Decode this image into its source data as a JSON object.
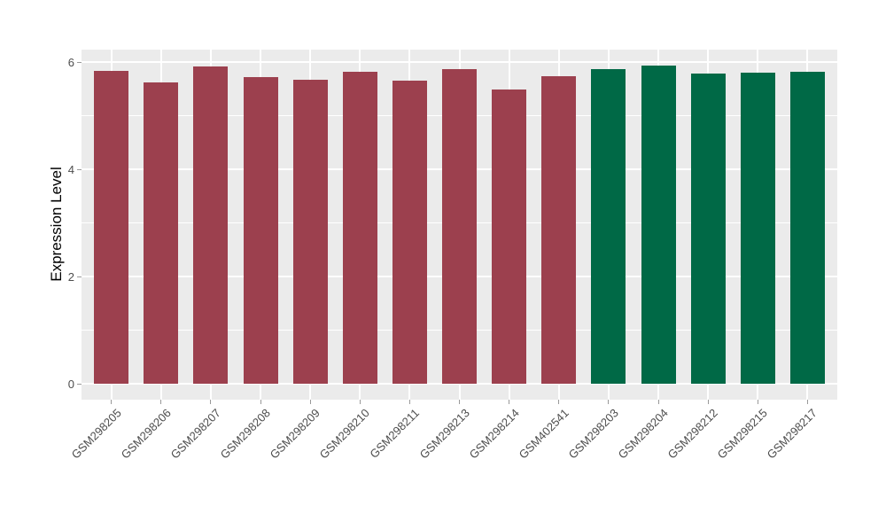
{
  "chart_data": {
    "type": "bar",
    "title": "",
    "xlabel": "",
    "ylabel": "Expression Level",
    "categories": [
      "GSM298205",
      "GSM298206",
      "GSM298207",
      "GSM298208",
      "GSM298209",
      "GSM298210",
      "GSM298211",
      "GSM298213",
      "GSM298214",
      "GSM402541",
      "GSM298203",
      "GSM298204",
      "GSM298212",
      "GSM298215",
      "GSM298217"
    ],
    "values": [
      5.84,
      5.62,
      5.92,
      5.72,
      5.67,
      5.81,
      5.65,
      5.87,
      5.48,
      5.74,
      5.86,
      5.93,
      5.79,
      5.8,
      5.81
    ],
    "groups": [
      "group1",
      "group1",
      "group1",
      "group1",
      "group1",
      "group1",
      "group1",
      "group1",
      "group1",
      "group1",
      "group2",
      "group2",
      "group2",
      "group2",
      "group2"
    ],
    "group_colors": {
      "group1": "#9C404E",
      "group2": "#006946"
    },
    "yticks_major": [
      0,
      2,
      4,
      6
    ],
    "ytick_labels": [
      "0",
      "2",
      "4",
      "6"
    ],
    "yticks_minor": [
      1,
      3,
      5
    ],
    "ylim": [
      -0.3,
      6.23
    ],
    "grid": true,
    "legend": "none",
    "panel_background": "#EBEBEB",
    "gridline_color": "#FFFFFF",
    "tick_color": "#999999",
    "tick_label_color": "#4D4D4D",
    "bar_width_fraction": 0.7
  }
}
